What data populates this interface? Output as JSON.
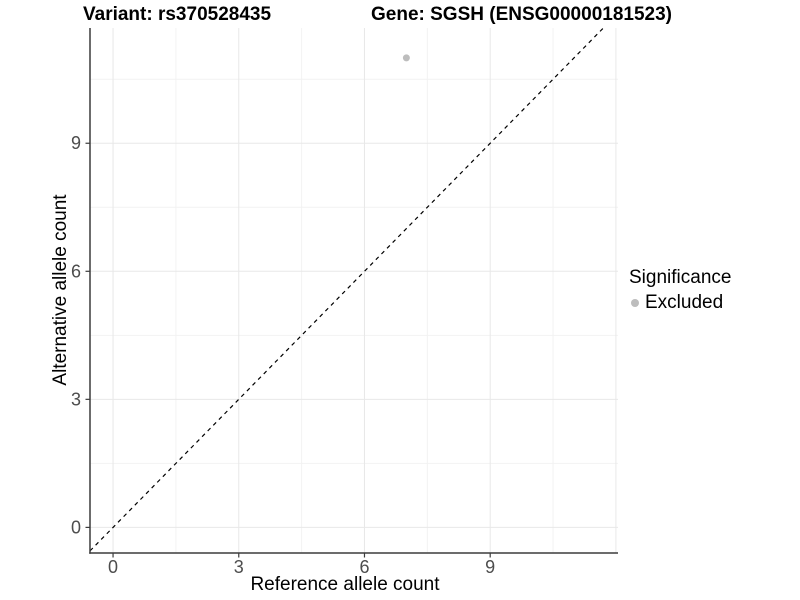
{
  "header": {
    "variant_title": "Variant: rs370528435",
    "gene_title": "Gene: SGSH (ENSG00000181523)"
  },
  "legend": {
    "title": "Significance",
    "items": [
      {
        "label": "Excluded",
        "marker": "circle",
        "color": "#bdbdbd"
      }
    ]
  },
  "chart_data": {
    "type": "scatter",
    "title": "Variant: rs370528435 / Gene: SGSH (ENSG00000181523)",
    "xlabel": "Reference allele count",
    "ylabel": "Alternative allele count",
    "x_ticks": [
      0,
      3,
      6,
      9
    ],
    "y_ticks": [
      0,
      3,
      6,
      9
    ],
    "xlim": [
      -0.55,
      12.05
    ],
    "ylim": [
      -0.6,
      11.7
    ],
    "grid": true,
    "grid_major_step": 3,
    "grid_minor_step": 1.5,
    "legend_position": "right",
    "series": [
      {
        "name": "Excluded",
        "color": "#bdbdbd",
        "points": [
          {
            "x": 7,
            "y": 11
          }
        ]
      }
    ],
    "reference_line": {
      "equation": "y = x",
      "style": "dashed",
      "color": "#000000"
    },
    "colors": {
      "background": "#ffffff",
      "grid_major": "#e8e8e8",
      "grid_minor": "#f2f2f2",
      "axis_line": "#3c3c3c",
      "tick_mark": "#3c3c3c",
      "tick_label": "#4d4d4d",
      "axis_title": "#000000",
      "title": "#000000"
    }
  }
}
